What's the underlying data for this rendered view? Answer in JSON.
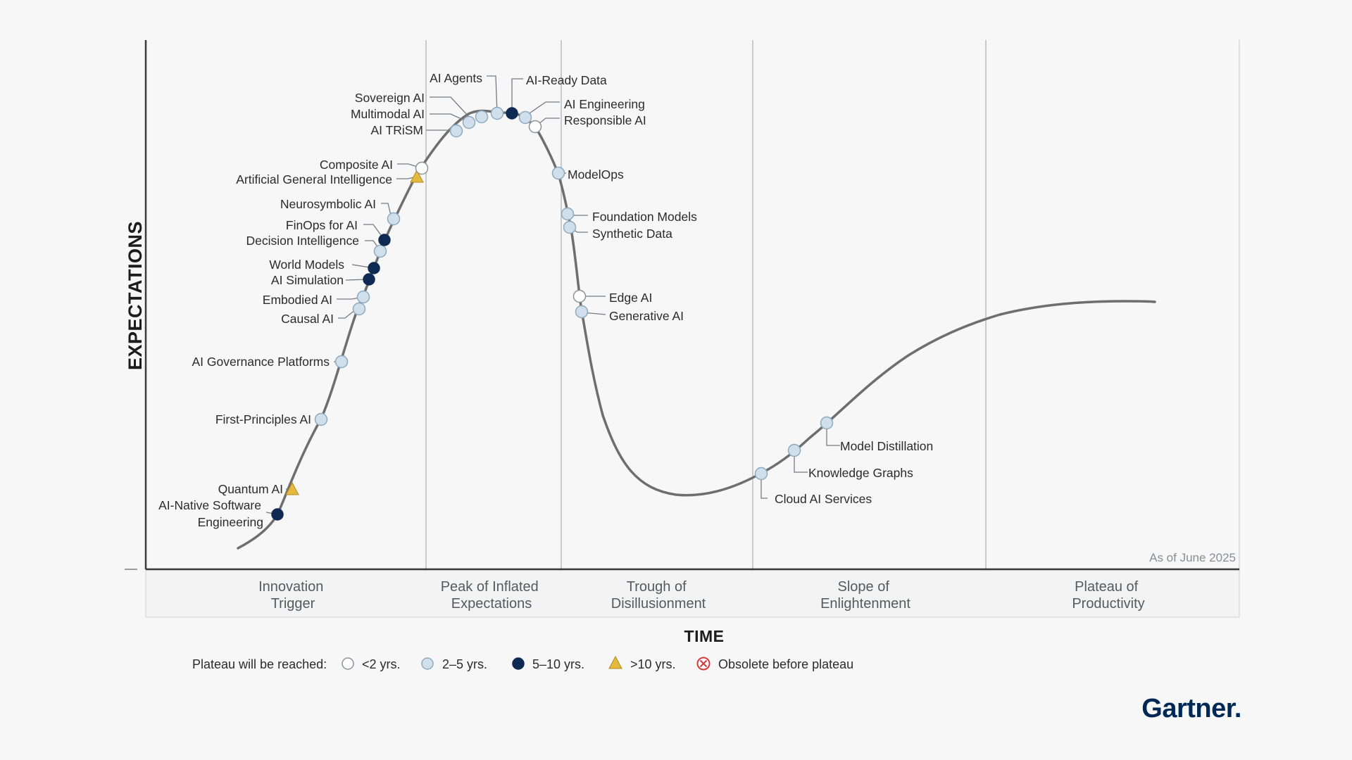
{
  "chart_data": {
    "type": "hype-cycle",
    "axes": {
      "y_label": "EXPECTATIONS",
      "x_label": "TIME"
    },
    "as_of": "As of June 2025",
    "phases": [
      {
        "name": "Innovation\nTrigger"
      },
      {
        "name": "Peak of Inflated\nExpectations"
      },
      {
        "name": "Trough of\nDisillusionment"
      },
      {
        "name": "Slope of\nEnlightenment"
      },
      {
        "name": "Plateau of\nProductivity"
      }
    ],
    "legend": {
      "title": "Plateau will be reached:",
      "items": [
        {
          "key": "lt2",
          "label": "<2 yrs.",
          "marker": "open-circle",
          "color": "#ffffff"
        },
        {
          "key": "2to5",
          "label": "2–5 yrs.",
          "marker": "light-circle",
          "color": "#cfe0ec"
        },
        {
          "key": "5to10",
          "label": "5–10 yrs.",
          "marker": "dark-circle",
          "color": "#0e2a52"
        },
        {
          "key": "gt10",
          "label": ">10 yrs.",
          "marker": "triangle",
          "color": "#e4b93e"
        },
        {
          "key": "obsolete",
          "label": "Obsolete before plateau",
          "marker": "x-circle",
          "color": "#d43a3a"
        }
      ]
    },
    "technologies": [
      {
        "name": "AI-Native Software\nEngineering",
        "phase": "Innovation Trigger",
        "plateau": "5to10"
      },
      {
        "name": "Quantum AI",
        "phase": "Innovation Trigger",
        "plateau": "gt10"
      },
      {
        "name": "First-Principles AI",
        "phase": "Innovation Trigger",
        "plateau": "2to5"
      },
      {
        "name": "AI Governance Platforms",
        "phase": "Innovation Trigger",
        "plateau": "2to5"
      },
      {
        "name": "Causal AI",
        "phase": "Innovation Trigger",
        "plateau": "2to5"
      },
      {
        "name": "Embodied AI",
        "phase": "Innovation Trigger",
        "plateau": "2to5"
      },
      {
        "name": "AI Simulation",
        "phase": "Innovation Trigger",
        "plateau": "5to10"
      },
      {
        "name": "World Models",
        "phase": "Innovation Trigger",
        "plateau": "5to10"
      },
      {
        "name": "Decision Intelligence",
        "phase": "Innovation Trigger",
        "plateau": "2to5"
      },
      {
        "name": "FinOps for AI",
        "phase": "Innovation Trigger",
        "plateau": "5to10"
      },
      {
        "name": "Neurosymbolic AI",
        "phase": "Innovation Trigger",
        "plateau": "2to5"
      },
      {
        "name": "Artificial General Intelligence",
        "phase": "Innovation Trigger",
        "plateau": "gt10"
      },
      {
        "name": "Composite AI",
        "phase": "Innovation Trigger",
        "plateau": "lt2"
      },
      {
        "name": "AI TRiSM",
        "phase": "Peak of Inflated Expectations",
        "plateau": "2to5"
      },
      {
        "name": "Multimodal AI",
        "phase": "Peak of Inflated Expectations",
        "plateau": "2to5"
      },
      {
        "name": "Sovereign AI",
        "phase": "Peak of Inflated Expectations",
        "plateau": "2to5"
      },
      {
        "name": "AI Agents",
        "phase": "Peak of Inflated Expectations",
        "plateau": "2to5"
      },
      {
        "name": "AI-Ready Data",
        "phase": "Peak of Inflated Expectations",
        "plateau": "5to10"
      },
      {
        "name": "AI Engineering",
        "phase": "Peak of Inflated Expectations",
        "plateau": "2to5"
      },
      {
        "name": "Responsible AI",
        "phase": "Peak of Inflated Expectations",
        "plateau": "lt2"
      },
      {
        "name": "ModelOps",
        "phase": "Trough of Disillusionment",
        "plateau": "2to5"
      },
      {
        "name": "Foundation Models",
        "phase": "Trough of Disillusionment",
        "plateau": "2to5"
      },
      {
        "name": "Synthetic Data",
        "phase": "Trough of Disillusionment",
        "plateau": "2to5"
      },
      {
        "name": "Edge AI",
        "phase": "Trough of Disillusionment",
        "plateau": "lt2"
      },
      {
        "name": "Generative AI",
        "phase": "Trough of Disillusionment",
        "plateau": "2to5"
      },
      {
        "name": "Cloud AI Services",
        "phase": "Slope of Enlightenment",
        "plateau": "2to5"
      },
      {
        "name": "Knowledge Graphs",
        "phase": "Slope of Enlightenment",
        "plateau": "2to5"
      },
      {
        "name": "Model Distillation",
        "phase": "Slope of Enlightenment",
        "plateau": "2to5"
      }
    ],
    "colors": {
      "curve": "#6e6e6e",
      "axis": "#3a3a3a",
      "divider": "#b9bcc0",
      "marker_outline": "#8fa9bd"
    }
  },
  "brand": {
    "logo_text": "Gartner."
  }
}
